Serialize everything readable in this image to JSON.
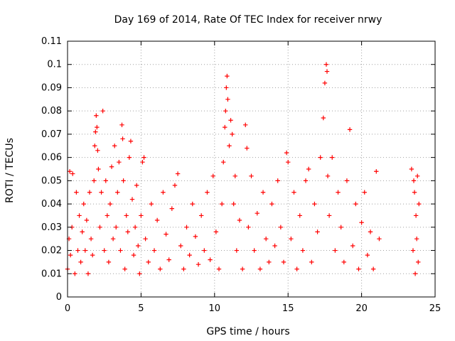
{
  "chart_data": {
    "type": "scatter",
    "title": "Day 169 of 2014, Rate Of TEC Index for receiver nrwy",
    "xlabel": "GPS time / hours",
    "ylabel": "ROTI / TECUs",
    "xlim": [
      0,
      25
    ],
    "ylim": [
      0,
      0.11
    ],
    "x_ticks": [
      0,
      5,
      10,
      15,
      20,
      25
    ],
    "x_tick_labels": [
      "0",
      "5",
      "10",
      "15",
      "20",
      "25"
    ],
    "y_ticks": [
      0,
      0.01,
      0.02,
      0.03,
      0.04,
      0.05,
      0.06,
      0.07,
      0.08,
      0.09,
      0.1,
      0.11
    ],
    "y_tick_labels": [
      "0",
      "0.01",
      "0.02",
      "0.03",
      "0.04",
      "0.05",
      "0.06",
      "0.07",
      "0.08",
      "0.09",
      "0.1",
      "0.11"
    ],
    "grid": true,
    "grid_style": "dotted",
    "marker": "plus",
    "series": [
      {
        "color": "#ff0000",
        "points": [
          [
            0.0,
            0.012
          ],
          [
            0.1,
            0.025
          ],
          [
            0.15,
            0.054
          ],
          [
            0.2,
            0.018
          ],
          [
            0.3,
            0.03
          ],
          [
            0.35,
            0.053
          ],
          [
            0.5,
            0.01
          ],
          [
            0.6,
            0.045
          ],
          [
            0.7,
            0.02
          ],
          [
            0.8,
            0.035
          ],
          [
            0.9,
            0.015
          ],
          [
            1.0,
            0.028
          ],
          [
            1.1,
            0.04
          ],
          [
            1.2,
            0.02
          ],
          [
            1.3,
            0.033
          ],
          [
            1.4,
            0.01
          ],
          [
            1.5,
            0.045
          ],
          [
            1.6,
            0.025
          ],
          [
            1.7,
            0.018
          ],
          [
            1.8,
            0.05
          ],
          [
            1.85,
            0.065
          ],
          [
            1.9,
            0.071
          ],
          [
            1.95,
            0.078
          ],
          [
            2.0,
            0.073
          ],
          [
            2.05,
            0.063
          ],
          [
            2.1,
            0.055
          ],
          [
            2.2,
            0.03
          ],
          [
            2.3,
            0.045
          ],
          [
            2.4,
            0.08
          ],
          [
            2.5,
            0.02
          ],
          [
            2.6,
            0.05
          ],
          [
            2.7,
            0.035
          ],
          [
            2.8,
            0.015
          ],
          [
            2.9,
            0.04
          ],
          [
            3.0,
            0.056
          ],
          [
            3.1,
            0.025
          ],
          [
            3.2,
            0.065
          ],
          [
            3.3,
            0.03
          ],
          [
            3.4,
            0.045
          ],
          [
            3.5,
            0.058
          ],
          [
            3.6,
            0.02
          ],
          [
            3.7,
            0.074
          ],
          [
            3.75,
            0.068
          ],
          [
            3.8,
            0.05
          ],
          [
            3.9,
            0.012
          ],
          [
            4.0,
            0.035
          ],
          [
            4.1,
            0.028
          ],
          [
            4.2,
            0.06
          ],
          [
            4.3,
            0.067
          ],
          [
            4.4,
            0.042
          ],
          [
            4.5,
            0.018
          ],
          [
            4.6,
            0.03
          ],
          [
            4.7,
            0.048
          ],
          [
            4.8,
            0.022
          ],
          [
            4.9,
            0.01
          ],
          [
            5.0,
            0.035
          ],
          [
            5.1,
            0.058
          ],
          [
            5.2,
            0.06
          ],
          [
            5.3,
            0.025
          ],
          [
            5.5,
            0.015
          ],
          [
            5.7,
            0.04
          ],
          [
            5.9,
            0.02
          ],
          [
            6.1,
            0.033
          ],
          [
            6.3,
            0.012
          ],
          [
            6.5,
            0.045
          ],
          [
            6.7,
            0.027
          ],
          [
            6.9,
            0.016
          ],
          [
            7.1,
            0.038
          ],
          [
            7.3,
            0.048
          ],
          [
            7.5,
            0.053
          ],
          [
            7.7,
            0.022
          ],
          [
            7.9,
            0.012
          ],
          [
            8.1,
            0.03
          ],
          [
            8.3,
            0.018
          ],
          [
            8.5,
            0.04
          ],
          [
            8.7,
            0.026
          ],
          [
            8.9,
            0.014
          ],
          [
            9.1,
            0.035
          ],
          [
            9.3,
            0.02
          ],
          [
            9.5,
            0.045
          ],
          [
            9.7,
            0.016
          ],
          [
            9.9,
            0.052
          ],
          [
            10.1,
            0.028
          ],
          [
            10.3,
            0.012
          ],
          [
            10.5,
            0.04
          ],
          [
            10.6,
            0.058
          ],
          [
            10.7,
            0.073
          ],
          [
            10.75,
            0.08
          ],
          [
            10.8,
            0.09
          ],
          [
            10.85,
            0.095
          ],
          [
            10.9,
            0.085
          ],
          [
            11.0,
            0.065
          ],
          [
            11.1,
            0.076
          ],
          [
            11.2,
            0.07
          ],
          [
            11.3,
            0.04
          ],
          [
            11.4,
            0.052
          ],
          [
            11.5,
            0.02
          ],
          [
            11.7,
            0.033
          ],
          [
            11.9,
            0.012
          ],
          [
            12.1,
            0.074
          ],
          [
            12.2,
            0.064
          ],
          [
            12.3,
            0.03
          ],
          [
            12.5,
            0.052
          ],
          [
            12.7,
            0.02
          ],
          [
            12.9,
            0.036
          ],
          [
            13.1,
            0.012
          ],
          [
            13.3,
            0.045
          ],
          [
            13.5,
            0.025
          ],
          [
            13.7,
            0.015
          ],
          [
            13.9,
            0.04
          ],
          [
            14.1,
            0.022
          ],
          [
            14.3,
            0.05
          ],
          [
            14.5,
            0.03
          ],
          [
            14.7,
            0.015
          ],
          [
            14.9,
            0.062
          ],
          [
            15.0,
            0.058
          ],
          [
            15.2,
            0.025
          ],
          [
            15.4,
            0.045
          ],
          [
            15.6,
            0.012
          ],
          [
            15.8,
            0.035
          ],
          [
            16.0,
            0.02
          ],
          [
            16.2,
            0.05
          ],
          [
            16.4,
            0.055
          ],
          [
            16.6,
            0.015
          ],
          [
            16.8,
            0.04
          ],
          [
            17.0,
            0.028
          ],
          [
            17.2,
            0.06
          ],
          [
            17.4,
            0.077
          ],
          [
            17.5,
            0.092
          ],
          [
            17.6,
            0.1
          ],
          [
            17.65,
            0.097
          ],
          [
            17.7,
            0.052
          ],
          [
            17.8,
            0.035
          ],
          [
            18.0,
            0.06
          ],
          [
            18.2,
            0.02
          ],
          [
            18.4,
            0.045
          ],
          [
            18.6,
            0.03
          ],
          [
            18.8,
            0.015
          ],
          [
            19.0,
            0.05
          ],
          [
            19.2,
            0.072
          ],
          [
            19.4,
            0.022
          ],
          [
            19.6,
            0.04
          ],
          [
            19.8,
            0.012
          ],
          [
            20.0,
            0.032
          ],
          [
            20.2,
            0.045
          ],
          [
            20.4,
            0.018
          ],
          [
            20.6,
            0.028
          ],
          [
            20.8,
            0.012
          ],
          [
            21.0,
            0.054
          ],
          [
            21.2,
            0.025
          ],
          [
            23.4,
            0.055
          ],
          [
            23.5,
            0.02
          ],
          [
            23.55,
            0.05
          ],
          [
            23.6,
            0.045
          ],
          [
            23.65,
            0.01
          ],
          [
            23.7,
            0.035
          ],
          [
            23.75,
            0.025
          ],
          [
            23.8,
            0.052
          ],
          [
            23.85,
            0.015
          ],
          [
            23.9,
            0.04
          ]
        ]
      }
    ]
  }
}
